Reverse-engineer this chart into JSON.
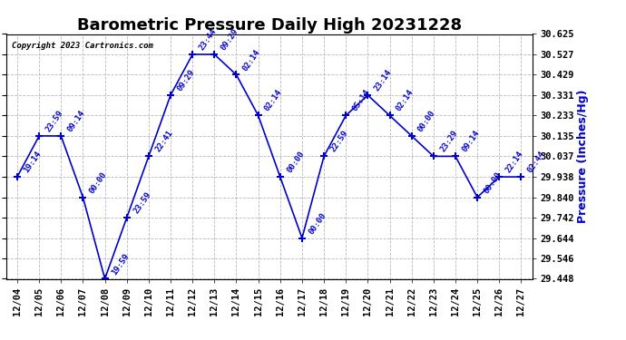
{
  "title": "Barometric Pressure Daily High 20231228",
  "ylabel": "Pressure (Inches/Hg)",
  "copyright": "Copyright 2023 Cartronics.com",
  "line_color": "#0000CD",
  "marker_color": "#0000CD",
  "background_color": "#ffffff",
  "grid_color": "#b0b0b0",
  "ylim": [
    29.448,
    30.625
  ],
  "yticks": [
    29.448,
    29.546,
    29.644,
    29.742,
    29.84,
    29.938,
    30.037,
    30.135,
    30.233,
    30.331,
    30.429,
    30.527,
    30.625
  ],
  "dates": [
    "12/04",
    "12/05",
    "12/06",
    "12/07",
    "12/08",
    "12/09",
    "12/10",
    "12/11",
    "12/12",
    "12/13",
    "12/14",
    "12/15",
    "12/16",
    "12/17",
    "12/18",
    "12/19",
    "12/20",
    "12/21",
    "12/22",
    "12/23",
    "12/24",
    "12/25",
    "12/26",
    "12/27"
  ],
  "values": [
    29.938,
    30.135,
    30.135,
    29.84,
    29.448,
    29.742,
    30.037,
    30.331,
    30.527,
    30.527,
    30.429,
    30.233,
    29.938,
    29.644,
    30.037,
    30.233,
    30.331,
    30.233,
    30.135,
    30.037,
    30.037,
    29.84,
    29.938,
    29.938
  ],
  "labels": [
    "19:14",
    "23:59",
    "09:14",
    "00:00",
    "19:59",
    "23:59",
    "22:41",
    "09:29",
    "23:44",
    "09:29",
    "02:14",
    "02:14",
    "00:00",
    "00:00",
    "22:59",
    "05:14",
    "23:14",
    "02:14",
    "00:00",
    "23:29",
    "09:14",
    "00:00",
    "22:14",
    "02:44"
  ],
  "label_color": "#0000CD",
  "title_fontsize": 13,
  "label_fontsize": 6.5,
  "tick_fontsize": 7.5,
  "ylabel_fontsize": 9
}
